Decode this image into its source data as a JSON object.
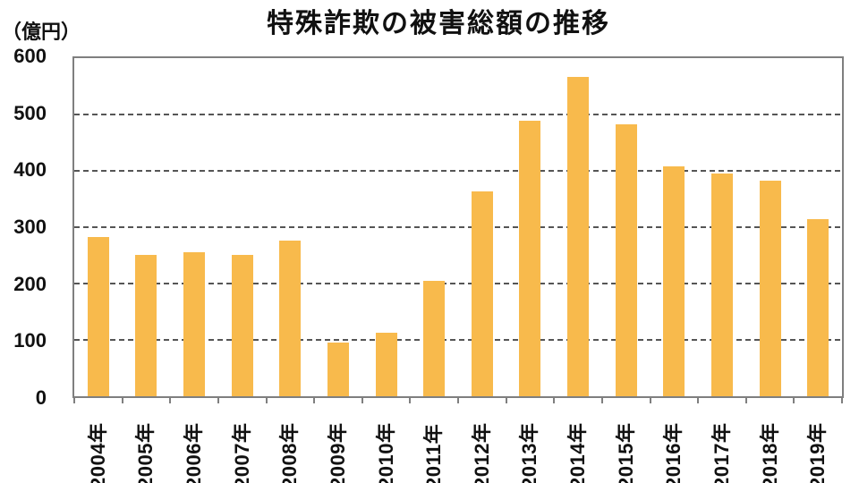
{
  "title": "特殊詐欺の被害総額の推移",
  "unit_label": "（億円）",
  "colors": {
    "bar": "#F8BA4C",
    "axis": "#7F7F7F",
    "grid": "#555555",
    "text": "#111111",
    "background": "#FFFFFF"
  },
  "chart_data": {
    "type": "bar",
    "title": "特殊詐欺の被害総額の推移",
    "xlabel": "",
    "ylabel": "（億円）",
    "categories": [
      "2004年",
      "2005年",
      "2006年",
      "2007年",
      "2008年",
      "2009年",
      "2010年",
      "2011年",
      "2012年",
      "2013年",
      "2014年",
      "2015年",
      "2016年",
      "2017年",
      "2018年",
      "2019年"
    ],
    "values": [
      283,
      251,
      255,
      251,
      276,
      96,
      113,
      204,
      364,
      489,
      566,
      482,
      408,
      395,
      383,
      315
    ],
    "ylim": [
      0,
      600
    ],
    "yticks": [
      0,
      100,
      200,
      300,
      400,
      500,
      600
    ],
    "grid": "horizontal-dashed",
    "legend": "none"
  }
}
